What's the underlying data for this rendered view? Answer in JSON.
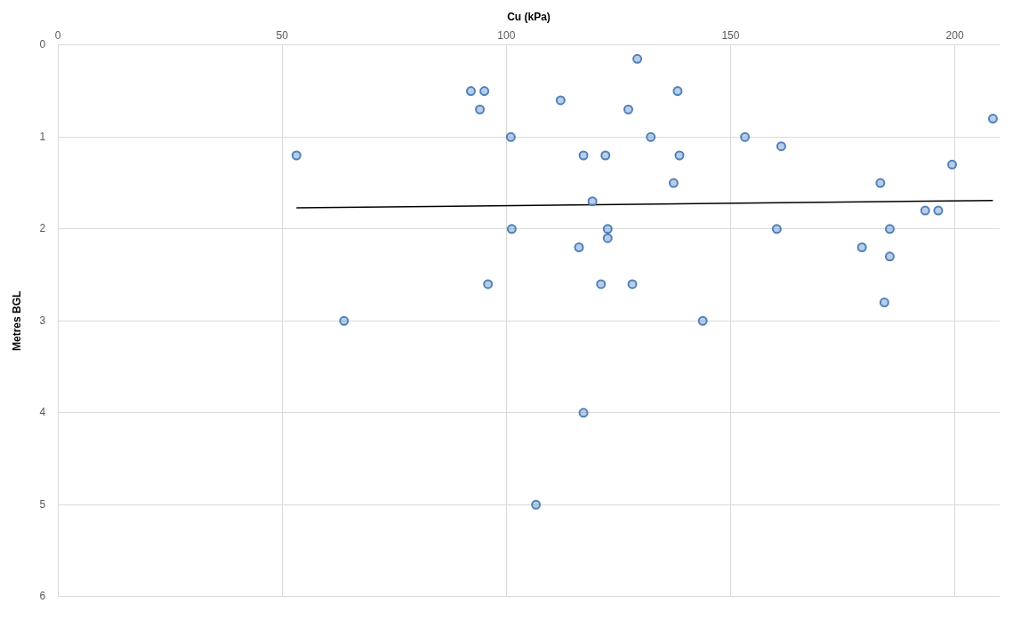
{
  "chart_data": {
    "type": "scatter",
    "xlabel": "Cu (kPa)",
    "ylabel": "Metres BGL",
    "xlim": [
      0,
      210
    ],
    "xticks": [
      0,
      50,
      100,
      150,
      200
    ],
    "ylim": [
      6,
      0
    ],
    "yticks": [
      0,
      1,
      2,
      3,
      4,
      5,
      6
    ],
    "grid": true,
    "legend": false,
    "marker": "circle",
    "series": [
      {
        "type": "scatter",
        "color": "#4f81bd",
        "x": [
          129.2,
          92.1,
          95.1,
          94.1,
          112.1,
          127.2,
          101,
          132.2,
          53.2,
          117.2,
          122.1,
          119.2,
          101.2,
          122.6,
          122.6,
          116.2,
          138.2,
          138.6,
          137.3,
          153.2,
          161.3,
          208.5,
          199.4,
          183.4,
          193.4,
          196.3,
          160.3,
          185.5,
          179.3,
          185.5,
          184.3,
          95.9,
          63.8,
          121.1,
          128.1,
          143.8,
          117.2,
          106.6
        ],
        "values": [
          0.15,
          0.5,
          0.5,
          0.7,
          0.6,
          0.7,
          1,
          1,
          1.2,
          1.2,
          1.2,
          1.7,
          2,
          2,
          2.1,
          2.2,
          0.5,
          1.2,
          1.5,
          1,
          1.1,
          0.8,
          1.3,
          1.5,
          1.8,
          1.8,
          2,
          2,
          2.2,
          2.3,
          2.8,
          2.6,
          3,
          2.6,
          2.6,
          3,
          4,
          5
        ]
      },
      {
        "type": "line",
        "color": "#000000",
        "marker": "none",
        "x": [
          53.2,
          208.5
        ],
        "values": [
          1.77,
          1.69
        ]
      }
    ]
  }
}
